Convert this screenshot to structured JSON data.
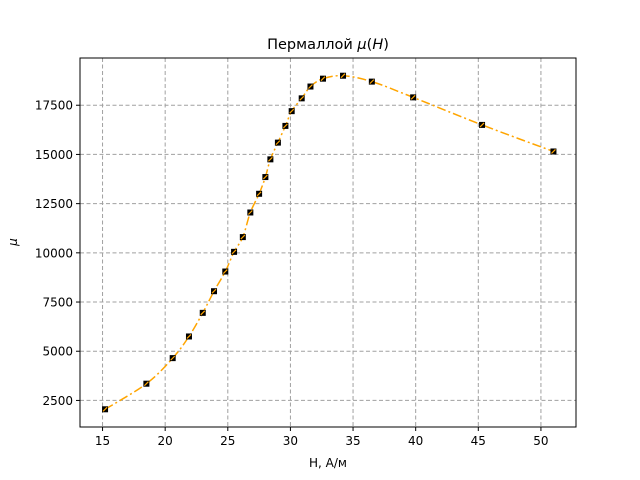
{
  "chart_data": {
    "type": "line",
    "title_prefix": "Пермаллой ",
    "title_var": "μ",
    "title_open": "(",
    "title_arg": "H",
    "title_close": ")",
    "xlabel": "H, А/м",
    "ylabel": "μ",
    "xlim": [
      13.2,
      52.8
    ],
    "ylim": [
      1150,
      19900
    ],
    "xticks": [
      15,
      20,
      25,
      30,
      35,
      40,
      45,
      50
    ],
    "yticks": [
      2500,
      5000,
      7500,
      10000,
      12500,
      15000,
      17500
    ],
    "grid": true,
    "line_color": "#ffa500",
    "marker_color": "#000000",
    "grid_color": "#a0a0a0",
    "series": [
      {
        "points": [
          {
            "x": 15.2,
            "y": 2050
          },
          {
            "x": 18.5,
            "y": 3350
          },
          {
            "x": 20.6,
            "y": 4650
          },
          {
            "x": 21.9,
            "y": 5750
          },
          {
            "x": 23.0,
            "y": 6950
          },
          {
            "x": 23.9,
            "y": 8050
          },
          {
            "x": 24.8,
            "y": 9050
          },
          {
            "x": 25.5,
            "y": 10050
          },
          {
            "x": 26.2,
            "y": 10800
          },
          {
            "x": 26.8,
            "y": 12050
          },
          {
            "x": 27.5,
            "y": 13000
          },
          {
            "x": 28.0,
            "y": 13850
          },
          {
            "x": 28.4,
            "y": 14750
          },
          {
            "x": 29.0,
            "y": 15600
          },
          {
            "x": 29.6,
            "y": 16450
          },
          {
            "x": 30.1,
            "y": 17200
          },
          {
            "x": 30.9,
            "y": 17850
          },
          {
            "x": 31.6,
            "y": 18450
          },
          {
            "x": 32.6,
            "y": 18850
          },
          {
            "x": 34.2,
            "y": 19000
          },
          {
            "x": 36.5,
            "y": 18700
          },
          {
            "x": 39.8,
            "y": 17900
          },
          {
            "x": 45.3,
            "y": 16500
          },
          {
            "x": 51.0,
            "y": 15150
          }
        ]
      }
    ]
  }
}
